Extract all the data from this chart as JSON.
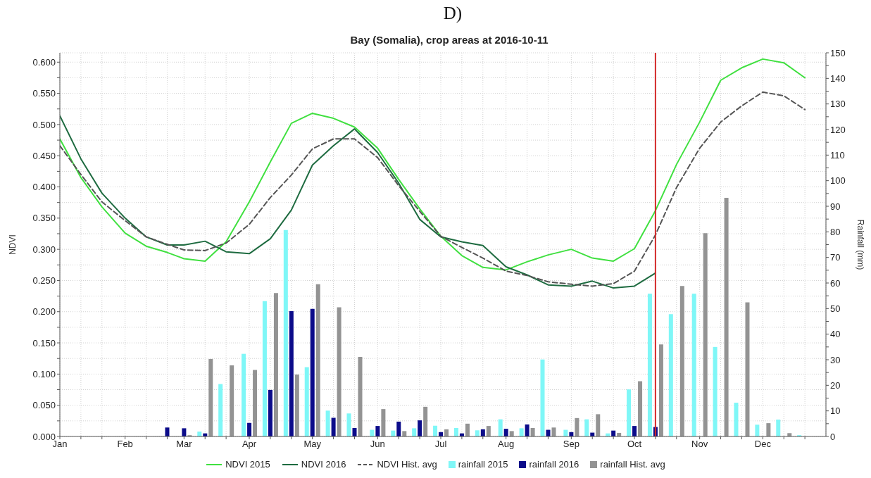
{
  "chart_data": {
    "type": "line",
    "title": "D)",
    "subtitle": "Bay (Somalia), crop areas at 2016-10-11",
    "ylabel": "NDVI",
    "y2label": "Rainfall (mm)",
    "x": [
      "--01-01",
      "--01-11",
      "--01-21",
      "--02-01",
      "--02-11",
      "--02-21",
      "--03-01",
      "--03-11",
      "--03-21",
      "--04-01",
      "--04-11",
      "--04-21",
      "--05-01",
      "--05-11",
      "--05-21",
      "--06-01",
      "--06-11",
      "--06-21",
      "--07-01",
      "--07-11",
      "--07-21",
      "--08-01",
      "--08-11",
      "--08-21",
      "--09-01",
      "--09-11",
      "--09-21",
      "--10-01",
      "--10-11",
      "--10-21",
      "--11-01",
      "--11-11",
      "--11-21",
      "--12-01",
      "--12-11",
      "--12-21"
    ],
    "series": [
      {
        "name": "NDVI 2015",
        "color": "#40e040",
        "values": [
          0.477,
          0.415,
          0.368,
          0.326,
          0.305,
          0.295,
          0.285,
          0.281,
          0.312,
          0.376,
          0.44,
          0.502,
          0.518,
          0.51,
          0.496,
          0.462,
          0.412,
          0.365,
          0.321,
          0.29,
          0.271,
          0.267,
          0.28,
          0.291,
          0.3,
          0.286,
          0.281,
          0.301,
          0.362,
          0.436,
          0.504,
          0.571,
          0.591,
          0.605,
          0.599,
          0.575
        ]
      },
      {
        "name": "NDVI 2016",
        "color": "#1e6b40",
        "values": [
          0.514,
          0.445,
          0.39,
          0.35,
          0.32,
          0.307,
          0.307,
          0.313,
          0.296,
          0.293,
          0.317,
          0.363,
          0.435,
          0.466,
          0.493,
          0.455,
          0.406,
          0.348,
          0.32,
          0.312,
          0.306,
          0.272,
          0.259,
          0.243,
          0.241,
          0.249,
          0.238,
          0.241,
          0.262,
          null,
          null,
          null,
          null,
          null,
          null,
          null
        ]
      },
      {
        "name": "NDVI Hist. avg",
        "color": "#555555",
        "line_style": "dashed",
        "values": [
          0.466,
          0.42,
          0.376,
          0.346,
          0.32,
          0.308,
          0.299,
          0.298,
          0.31,
          0.34,
          0.383,
          0.419,
          0.461,
          0.477,
          0.477,
          0.447,
          0.402,
          0.361,
          0.321,
          0.303,
          0.286,
          0.265,
          0.258,
          0.248,
          0.244,
          0.241,
          0.245,
          0.265,
          0.323,
          0.399,
          0.462,
          0.504,
          0.53,
          0.552,
          0.546,
          0.524
        ]
      },
      {
        "name": "rainfall 2015",
        "type": "bar",
        "axis": "y2",
        "color": "#7ff7f7",
        "values": [
          0,
          0,
          0,
          0,
          0,
          0,
          0,
          1.9,
          20.5,
          32.3,
          52.9,
          80.7,
          27.1,
          10.1,
          9.0,
          2.6,
          2.3,
          3.2,
          4.2,
          3.3,
          2.4,
          6.7,
          3.2,
          30.1,
          2.6,
          6.7,
          1.2,
          18.4,
          55.8,
          47.8,
          55.8,
          35.0,
          13.2,
          4.6,
          6.6,
          0.5
        ]
      },
      {
        "name": "rainfall 2016",
        "type": "bar",
        "axis": "y2",
        "color": "#0c0c8a",
        "values": [
          0,
          0,
          0,
          0,
          0,
          3.5,
          3.2,
          1.2,
          0,
          5.3,
          18.2,
          49.0,
          49.9,
          7.3,
          3.3,
          4.1,
          5.8,
          6.3,
          1.7,
          1.2,
          2.8,
          3.0,
          4.7,
          2.6,
          1.7,
          1.5,
          2.3,
          4.1,
          3.7,
          null,
          null,
          null,
          null,
          null,
          null,
          null
        ]
      },
      {
        "name": "rainfall Hist. avg",
        "type": "bar",
        "axis": "y2",
        "color": "#939393",
        "values": [
          0,
          0,
          0,
          0,
          0,
          0,
          0.5,
          30.3,
          27.8,
          26.0,
          56.1,
          24.2,
          59.5,
          50.5,
          31.1,
          10.7,
          2.1,
          11.6,
          2.8,
          5.0,
          4.1,
          2.1,
          3.3,
          3.5,
          7.2,
          8.7,
          1.4,
          21.6,
          36.0,
          58.8,
          79.5,
          93.3,
          52.4,
          5.2,
          1.3,
          0
        ]
      }
    ],
    "xlim": [
      "--01-01",
      "--12-31"
    ],
    "xticks": [
      {
        "value": "--01-01",
        "label": "Jan"
      },
      {
        "value": "--01-11",
        "label": null
      },
      {
        "value": "--01-21",
        "label": null
      },
      {
        "value": "--02-01",
        "label": "Feb"
      },
      {
        "value": "--02-11",
        "label": null
      },
      {
        "value": "--02-21",
        "label": null
      },
      {
        "value": "--03-01",
        "label": "Mar"
      },
      {
        "value": "--03-11",
        "label": null
      },
      {
        "value": "--03-21",
        "label": null
      },
      {
        "value": "--04-01",
        "label": "Apr"
      },
      {
        "value": "--04-11",
        "label": null
      },
      {
        "value": "--04-21",
        "label": null
      },
      {
        "value": "--05-01",
        "label": "May"
      },
      {
        "value": "--05-11",
        "label": null
      },
      {
        "value": "--05-21",
        "label": null
      },
      {
        "value": "--06-01",
        "label": "Jun"
      },
      {
        "value": "--06-11",
        "label": null
      },
      {
        "value": "--06-21",
        "label": null
      },
      {
        "value": "--07-01",
        "label": "Jul"
      },
      {
        "value": "--07-11",
        "label": null
      },
      {
        "value": "--07-21",
        "label": null
      },
      {
        "value": "--08-01",
        "label": "Aug"
      },
      {
        "value": "--08-11",
        "label": null
      },
      {
        "value": "--08-21",
        "label": null
      },
      {
        "value": "--09-01",
        "label": "Sep"
      },
      {
        "value": "--09-11",
        "label": null
      },
      {
        "value": "--09-21",
        "label": null
      },
      {
        "value": "--10-01",
        "label": "Oct"
      },
      {
        "value": "--10-11",
        "label": null
      },
      {
        "value": "--10-21",
        "label": null
      },
      {
        "value": "--11-01",
        "label": "Nov"
      },
      {
        "value": "--11-11",
        "label": null
      },
      {
        "value": "--11-21",
        "label": null
      },
      {
        "value": "--12-01",
        "label": "Dec"
      },
      {
        "value": "--12-11",
        "label": null
      },
      {
        "value": "--12-21",
        "label": null
      }
    ],
    "ylim": [
      0,
      0.615
    ],
    "yticks": [
      {
        "value": 0,
        "label": "0.000"
      },
      {
        "value": 0.025,
        "label": null
      },
      {
        "value": 0.05,
        "label": "0.050"
      },
      {
        "value": 0.075,
        "label": null
      },
      {
        "value": 0.1,
        "label": "0.100"
      },
      {
        "value": 0.125,
        "label": null
      },
      {
        "value": 0.15,
        "label": "0.150"
      },
      {
        "value": 0.175,
        "label": null
      },
      {
        "value": 0.2,
        "label": "0.200"
      },
      {
        "value": 0.225,
        "label": null
      },
      {
        "value": 0.25,
        "label": "0.250"
      },
      {
        "value": 0.275,
        "label": null
      },
      {
        "value": 0.3,
        "label": "0.300"
      },
      {
        "value": 0.325,
        "label": null
      },
      {
        "value": 0.35,
        "label": "0.350"
      },
      {
        "value": 0.375,
        "label": null
      },
      {
        "value": 0.4,
        "label": "0.400"
      },
      {
        "value": 0.425,
        "label": null
      },
      {
        "value": 0.45,
        "label": "0.450"
      },
      {
        "value": 0.475,
        "label": null
      },
      {
        "value": 0.5,
        "label": "0.500"
      },
      {
        "value": 0.525,
        "label": null
      },
      {
        "value": 0.55,
        "label": "0.550"
      },
      {
        "value": 0.575,
        "label": null
      },
      {
        "value": 0.6,
        "label": "0.600"
      }
    ],
    "y2lim": [
      0,
      150
    ],
    "y2ticks": [
      0,
      {
        "value": 5,
        "label": null
      },
      10,
      {
        "value": 15,
        "label": null
      },
      20,
      {
        "value": 25,
        "label": null
      },
      30,
      {
        "value": 35,
        "label": null
      },
      40,
      {
        "value": 45,
        "label": null
      },
      50,
      {
        "value": 55,
        "label": null
      },
      60,
      {
        "value": 65,
        "label": null
      },
      70,
      {
        "value": 75,
        "label": null
      },
      80,
      {
        "value": 85,
        "label": null
      },
      90,
      {
        "value": 95,
        "label": null
      },
      100,
      {
        "value": 105,
        "label": null
      },
      110,
      {
        "value": 115,
        "label": null
      },
      120,
      {
        "value": 125,
        "label": null
      },
      130,
      {
        "value": 135,
        "label": null
      },
      140,
      {
        "value": 145,
        "label": null
      },
      150
    ],
    "ref_lines": [
      {
        "axis": "x",
        "value": "--10-11",
        "color": "#d42a2a"
      }
    ],
    "grid": true,
    "legend": "bottom"
  }
}
